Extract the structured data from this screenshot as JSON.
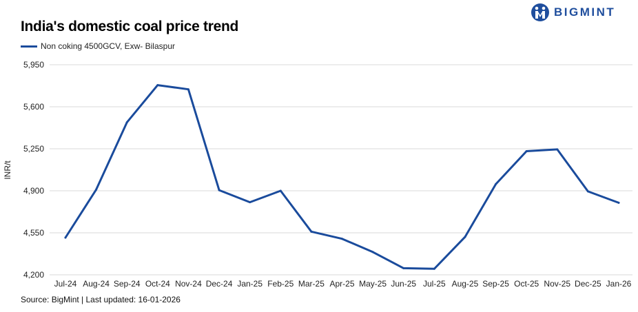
{
  "brand": {
    "name": "BIGMINT",
    "color": "#1f4e9d"
  },
  "footer": {
    "source": "Source: BigMint | Last updated: 16-01-2026"
  },
  "chart_data": {
    "type": "line",
    "title": "India's domestic coal price trend",
    "xlabel": "",
    "ylabel": "INR/t",
    "categories": [
      "Jul-24",
      "Aug-24",
      "Sep-24",
      "Oct-24",
      "Nov-24",
      "Dec-24",
      "Jan-25",
      "Feb-25",
      "Mar-25",
      "Apr-25",
      "May-25",
      "Jun-25",
      "Jul-25",
      "Aug-25",
      "Sep-25",
      "Oct-25",
      "Nov-25",
      "Dec-25",
      "Jan-26"
    ],
    "series": [
      {
        "name": "Non coking 4500GCV, Exw- Bilaspur",
        "color": "#1a4b9c",
        "values": [
          4510,
          4910,
          5470,
          5780,
          5745,
          4905,
          4805,
          4900,
          4560,
          4500,
          4390,
          4255,
          4250,
          4515,
          4955,
          5230,
          5245,
          4895,
          4800
        ]
      }
    ],
    "yticks": [
      "5,950",
      "5,600",
      "5,250",
      "4,900",
      "4,550",
      "4,200"
    ],
    "ylim": [
      4200,
      5950
    ],
    "grid": true,
    "legend": "top-left"
  }
}
